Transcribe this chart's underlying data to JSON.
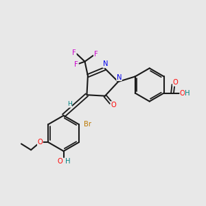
{
  "background_color": "#e8e8e8",
  "bond_color": "#1a1a1a",
  "atom_colors": {
    "N": "#0000ee",
    "O": "#ff0000",
    "H": "#008080",
    "F": "#cc00cc",
    "Br": "#bb7700",
    "C": "#1a1a1a"
  },
  "figsize": [
    3.0,
    3.0
  ],
  "dpi": 100
}
